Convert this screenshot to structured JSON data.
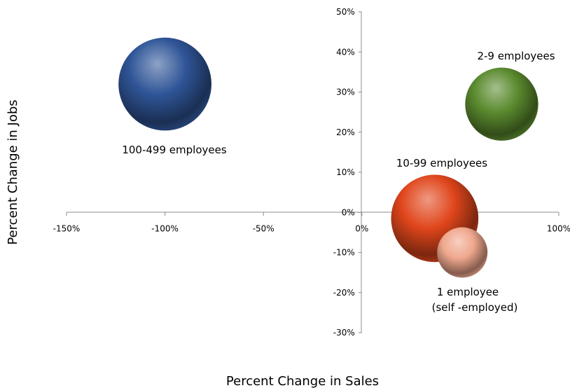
{
  "chart_data": {
    "type": "scatter",
    "title": "",
    "xlabel": "Percent Change in Sales",
    "ylabel": "Percent Change in Jobs",
    "xlim": [
      -150,
      100
    ],
    "ylim": [
      -30,
      50
    ],
    "x_ticks": [
      "-150%",
      "-100%",
      "-50%",
      "0%",
      "50%",
      "100%"
    ],
    "y_ticks": [
      "50%",
      "40%",
      "30%",
      "20%",
      "10%",
      "0%",
      "-10%",
      "-20%",
      "-30%"
    ],
    "grid": false,
    "legend": "none",
    "bubbles": [
      {
        "label": "100-499 employees",
        "x": -100,
        "y": 32,
        "size": 3.4,
        "color": "#2f5597"
      },
      {
        "label": "2-9 employees",
        "x": 71,
        "y": 27,
        "size": 2.1,
        "color": "#5a8a2e"
      },
      {
        "label": "10-99 employees",
        "x": 37,
        "y": -1.5,
        "size": 3.0,
        "color": "#e0461c"
      },
      {
        "label_lines": [
          "1 employee",
          "(self -employed)"
        ],
        "x": 51,
        "y": -10,
        "size": 1.0,
        "color": "#f0a88e"
      }
    ]
  }
}
